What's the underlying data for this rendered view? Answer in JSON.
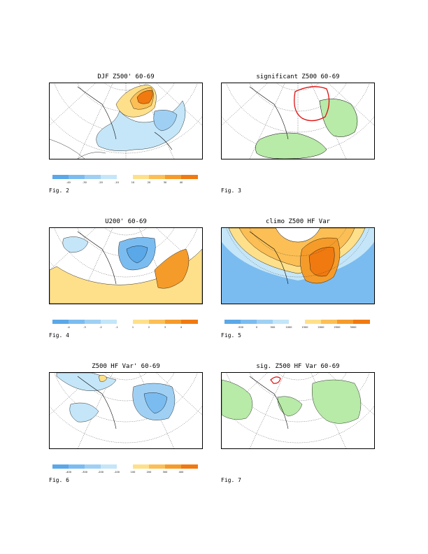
{
  "panels": [
    {
      "id": "p1",
      "title": "DJF Z500' 60-69",
      "fig": "Fig. 2",
      "colorbar": {
        "colors": [
          "#5aa8e8",
          "#7bbcf0",
          "#9fd0f4",
          "#c4e6f8",
          "#ffffff",
          "#ffe08a",
          "#fbbf55",
          "#f59b2a",
          "#f07a10"
        ],
        "labels": [
          "-40",
          "-30",
          "-20",
          "-10",
          "10",
          "20",
          "30",
          "40"
        ]
      }
    },
    {
      "id": "p2",
      "title": "significant Z500 60-69",
      "fig": "Fig. 3"
    },
    {
      "id": "p3",
      "title": "U200' 60-69",
      "fig": "Fig. 4",
      "colorbar": {
        "colors": [
          "#5aa8e8",
          "#7bbcf0",
          "#9fd0f4",
          "#c4e6f8",
          "#ffffff",
          "#ffe08a",
          "#fbbf55",
          "#f59b2a",
          "#f07a10"
        ],
        "labels": [
          "-4",
          "-3",
          "-2",
          "-1",
          "1",
          "2",
          "3",
          "4"
        ]
      }
    },
    {
      "id": "p4",
      "title": "climo Z500 HF Var",
      "fig": "Fig. 5",
      "colorbar": {
        "colors": [
          "#5aa8e8",
          "#7bbcf0",
          "#9fd0f4",
          "#c4e6f8",
          "#ffffff",
          "#ffe08a",
          "#fbbf55",
          "#f59b2a",
          "#f07a10"
        ],
        "labels": [
          "-500",
          "0",
          "500",
          "1000",
          "1500",
          "2000",
          "2500",
          "3000"
        ]
      }
    },
    {
      "id": "p5",
      "title": "Z500 HF Var' 60-69",
      "fig": "Fig. 6",
      "colorbar": {
        "colors": [
          "#5aa8e8",
          "#7bbcf0",
          "#9fd0f4",
          "#c4e6f8",
          "#ffffff",
          "#ffe08a",
          "#fbbf55",
          "#f59b2a",
          "#f07a10"
        ],
        "labels": [
          "-400",
          "-300",
          "-200",
          "-100",
          "100",
          "200",
          "300",
          "400"
        ]
      }
    },
    {
      "id": "p6",
      "title": "sig. Z500 HF Var 60-69",
      "fig": "Fig. 7"
    }
  ]
}
